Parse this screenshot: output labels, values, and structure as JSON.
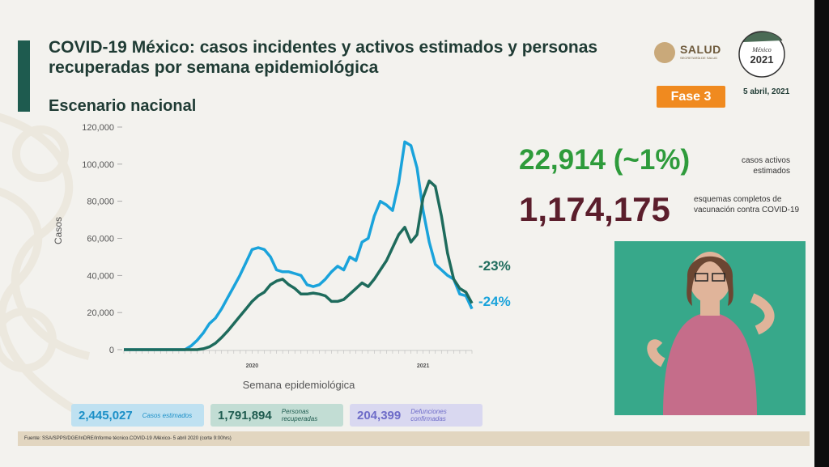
{
  "title": "COVID-19 México: casos incidentes y activos estimados y personas recuperadas por semana epidemiológica",
  "subtitle": "Escenario nacional",
  "logos": {
    "salud": "SALUD",
    "salud_small": "SECRETARÍA DE SALUD",
    "mexico": "México 2021"
  },
  "fase": "Fase 3",
  "date": "5 abril, 2021",
  "stats": {
    "active_value": "22,914 (~1%)",
    "active_label": "casos activos estimados",
    "vacc_value": "1,174,175",
    "vacc_label": "esquemas completos de vacunación contra COVID-19"
  },
  "boxes": [
    {
      "value": "2,445,027",
      "label": "Casos estimados"
    },
    {
      "value": "1,791,894",
      "label": "Personas recuperadas"
    },
    {
      "value": "204,399",
      "label": "Defunciones confirmadas"
    }
  ],
  "footer": "Fuente: SSA/SPPS/DGE/InDRE/Informe técnico.COVID-19 /México- 5 abril 2020 (corte 9:00hrs)",
  "colors": {
    "cases": "#1aa3db",
    "recovered": "#1e6b5c",
    "active": "#2e9b3b",
    "vaccine": "#5b1e2c",
    "fase": "#f08a1f"
  },
  "chart_data": {
    "type": "line",
    "xlabel": "Semana epidemiológica",
    "ylabel": "Casos",
    "ylim": [
      0,
      120000
    ],
    "yticks": [
      0,
      20000,
      40000,
      60000,
      80000,
      100000,
      120000
    ],
    "ytick_labels": [
      "0",
      "20,000",
      "40,000",
      "60,000",
      "80,000",
      "100,000",
      "120,000"
    ],
    "year_labels": [
      {
        "week": 21,
        "label": "2020"
      },
      {
        "week": 49,
        "label": "2021"
      }
    ],
    "n_weeks": 58,
    "series": [
      {
        "name": "casos estimados",
        "color": "#1aa3db",
        "values": [
          0,
          0,
          0,
          0,
          0,
          0,
          0,
          0,
          0,
          0,
          0,
          2000,
          5000,
          9000,
          14000,
          17000,
          22000,
          28000,
          34000,
          40000,
          47000,
          54000,
          55000,
          54000,
          50000,
          43000,
          42000,
          42000,
          41000,
          40000,
          35000,
          34000,
          35000,
          38000,
          42000,
          45000,
          43000,
          50000,
          48000,
          58000,
          60000,
          72000,
          80000,
          78000,
          75000,
          90000,
          112000,
          110000,
          98000,
          75000,
          58000,
          46000,
          43000,
          40000,
          38000,
          30000,
          29000,
          22000
        ],
        "end_label": "-24%"
      },
      {
        "name": "personas recuperadas",
        "color": "#1e6b5c",
        "values": [
          0,
          0,
          0,
          0,
          0,
          0,
          0,
          0,
          0,
          0,
          0,
          0,
          0,
          500,
          1500,
          3500,
          6500,
          10000,
          14000,
          18000,
          22000,
          26000,
          29000,
          31000,
          35000,
          37000,
          38000,
          35000,
          33000,
          30000,
          30000,
          30500,
          30000,
          29000,
          26000,
          26000,
          27000,
          30000,
          33000,
          36000,
          34000,
          38000,
          43000,
          48000,
          55000,
          62000,
          66000,
          58000,
          62000,
          82000,
          91000,
          88000,
          72000,
          52000,
          38000,
          33000,
          31000,
          25000
        ],
        "end_label": "-23%"
      }
    ]
  }
}
